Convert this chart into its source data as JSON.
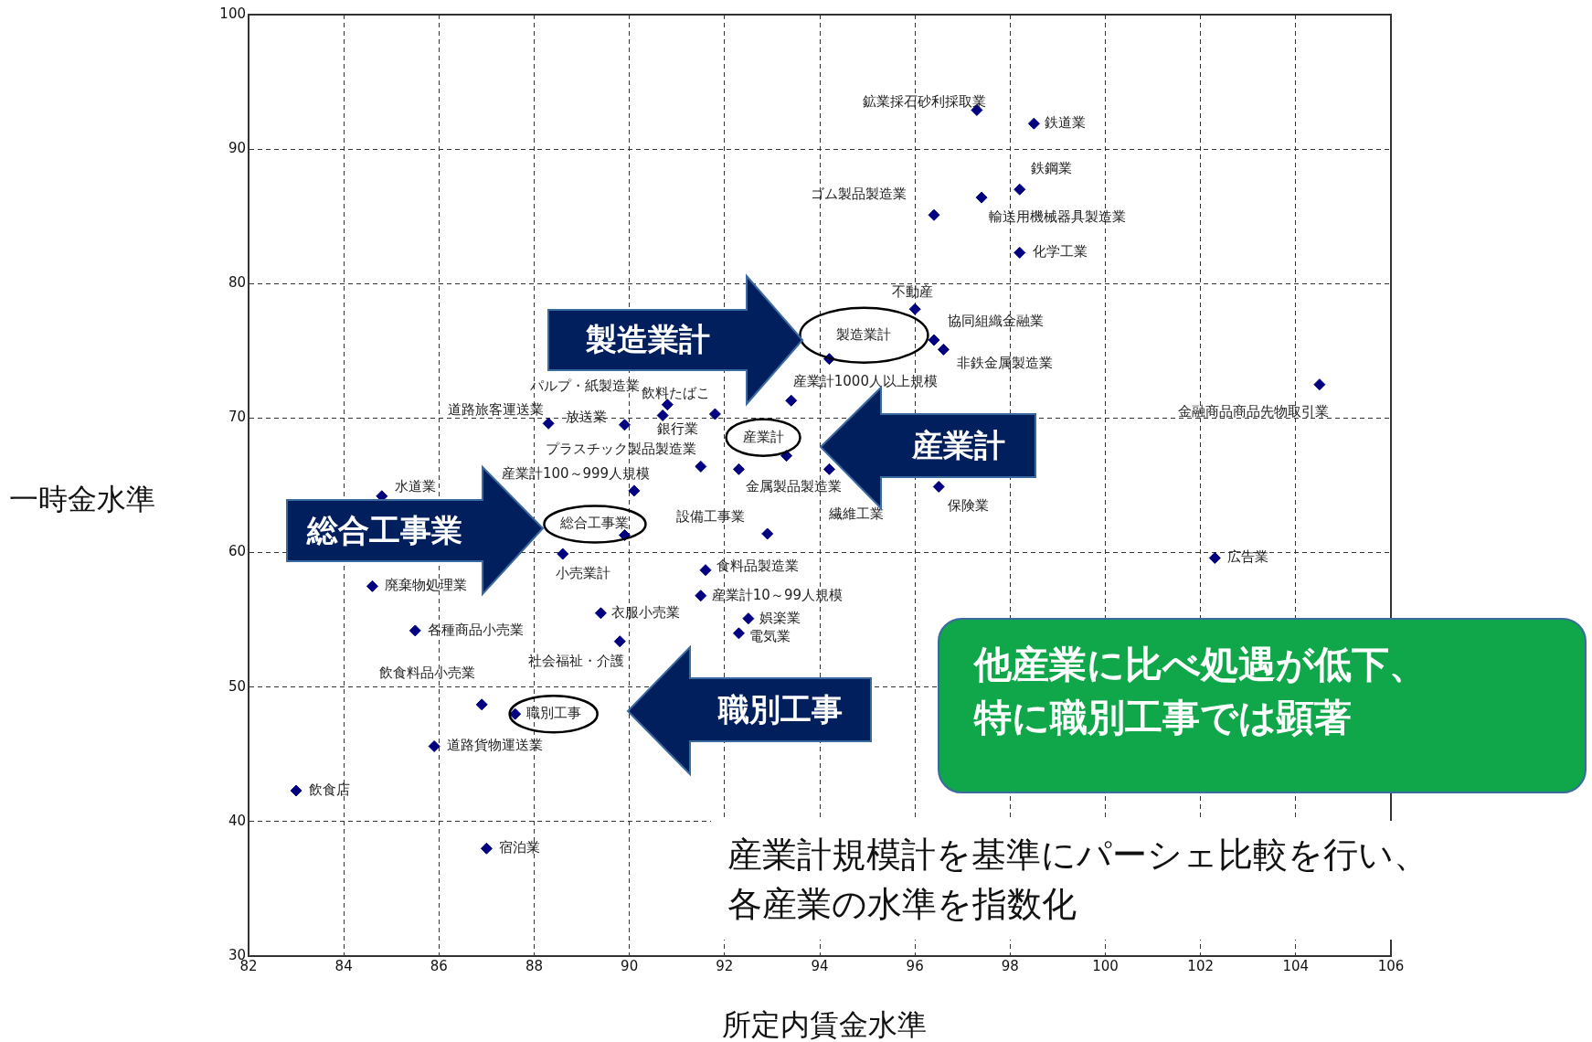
{
  "chart_data": {
    "type": "scatter",
    "xlabel": "所定内賃金水準",
    "ylabel": "一時金水準",
    "xlim": [
      82,
      106
    ],
    "xticks": [
      82,
      84,
      86,
      88,
      90,
      92,
      94,
      96,
      98,
      100,
      102,
      104,
      106
    ],
    "ylim": [
      30,
      100
    ],
    "yticks": [
      30,
      40,
      50,
      60,
      70,
      80,
      90,
      100
    ],
    "grid": true,
    "legend": false,
    "marker": "diamond",
    "series": [
      {
        "color": "#000080",
        "x": [
          97.3,
          98.5,
          98.2,
          97.4,
          96.4,
          98.2,
          96.0,
          96.4,
          96.6,
          94.2,
          93.4,
          90.8,
          91.8,
          90.7,
          89.9,
          88.3,
          93.3,
          91.5,
          92.3,
          94.2,
          96.5,
          90.1,
          84.8,
          89.9,
          92.9,
          88.6,
          91.6,
          102.3,
          84.6,
          91.5,
          89.4,
          92.5,
          85.5,
          92.3,
          89.8,
          86.9,
          87.6,
          85.9,
          83.0,
          87.0,
          104.5
        ],
        "values": [
          92.9,
          91.9,
          87.0,
          86.4,
          85.1,
          82.3,
          78.1,
          75.8,
          75.1,
          74.4,
          71.3,
          71.0,
          70.3,
          70.2,
          69.5,
          69.6,
          67.2,
          66.4,
          66.2,
          66.2,
          64.9,
          64.6,
          64.2,
          61.3,
          61.4,
          59.9,
          58.7,
          59.6,
          57.5,
          56.8,
          55.5,
          55.1,
          54.2,
          54.0,
          53.4,
          48.7,
          48.0,
          45.6,
          42.3,
          38.0,
          72.5
        ]
      }
    ],
    "annotations": [
      {
        "text": "鉱業採石砂利採取業",
        "x": 97.3,
        "y": 92.9
      },
      {
        "text": "鉄道業",
        "x": 98.5,
        "y": 91.9
      },
      {
        "text": "鉄鋼業",
        "x": 98.2,
        "y": 87.0
      },
      {
        "text": "輸送用機械器具製造業",
        "x": 97.4,
        "y": 86.4
      },
      {
        "text": "ゴム製品製造業",
        "x": 96.4,
        "y": 85.1
      },
      {
        "text": "化学工業",
        "x": 98.2,
        "y": 82.3
      },
      {
        "text": "不動産",
        "x": 96.0,
        "y": 78.1
      },
      {
        "text": "協同組織金融業",
        "x": 96.4,
        "y": 75.8
      },
      {
        "text": "非鉄金属製造業",
        "x": 96.6,
        "y": 75.1
      },
      {
        "text": "製造業計",
        "x": 94.2,
        "y": 74.4
      },
      {
        "text": "産業計1000人以上規模",
        "x": 93.4,
        "y": 71.3
      },
      {
        "text": "パルプ・紙製造業",
        "x": 90.8,
        "y": 71.0
      },
      {
        "text": "飲料たばこ",
        "x": 91.8,
        "y": 70.3
      },
      {
        "text": "銀行業",
        "x": 90.7,
        "y": 70.2
      },
      {
        "text": "放送業",
        "x": 89.9,
        "y": 69.5
      },
      {
        "text": "道路旅客運送業",
        "x": 88.3,
        "y": 69.6
      },
      {
        "text": "産業計",
        "x": 93.3,
        "y": 67.2
      },
      {
        "text": "プラスチック製品製造業",
        "x": 91.5,
        "y": 66.4
      },
      {
        "text": "金属製品製造業",
        "x": 92.3,
        "y": 66.2
      },
      {
        "text": "繊維工業",
        "x": 94.2,
        "y": 66.2
      },
      {
        "text": "保険業",
        "x": 96.5,
        "y": 64.9
      },
      {
        "text": "産業計100～999人規模",
        "x": 90.1,
        "y": 64.6
      },
      {
        "text": "水道業",
        "x": 84.8,
        "y": 64.2
      },
      {
        "text": "総合工事業",
        "x": 89.9,
        "y": 61.3
      },
      {
        "text": "設備工事業",
        "x": 92.9,
        "y": 61.4
      },
      {
        "text": "小売業計",
        "x": 88.6,
        "y": 59.9
      },
      {
        "text": "食料品製造業",
        "x": 91.6,
        "y": 58.7
      },
      {
        "text": "広告業",
        "x": 102.3,
        "y": 59.6
      },
      {
        "text": "廃棄物処理業",
        "x": 84.6,
        "y": 57.5
      },
      {
        "text": "産業計10～99人規模",
        "x": 91.5,
        "y": 56.8
      },
      {
        "text": "衣服小売業",
        "x": 89.4,
        "y": 55.5
      },
      {
        "text": "娯楽業",
        "x": 92.5,
        "y": 55.1
      },
      {
        "text": "各種商品小売業",
        "x": 85.5,
        "y": 54.2
      },
      {
        "text": "電気業",
        "x": 92.3,
        "y": 54.0
      },
      {
        "text": "社会福祉・介護",
        "x": 89.8,
        "y": 53.4
      },
      {
        "text": "飲食料品小売業",
        "x": 86.9,
        "y": 48.7
      },
      {
        "text": "職別工事",
        "x": 87.6,
        "y": 48.0
      },
      {
        "text": "道路貨物運送業",
        "x": 85.9,
        "y": 45.6
      },
      {
        "text": "飲食店",
        "x": 83.0,
        "y": 42.3
      },
      {
        "text": "宿泊業",
        "x": 87.0,
        "y": 38.0
      },
      {
        "text": "金融商品商品先物取引業",
        "x": 104.5,
        "y": 72.5
      },
      "製造業計",
      "産業計",
      "総合工事業",
      "職別工事",
      "他産業に比べ処遇が低下、",
      "特に職別工事では顕著",
      "産業計規模計を基準にパーシェ比較を行い、",
      "各産業の水準を指数化"
    ]
  }
}
